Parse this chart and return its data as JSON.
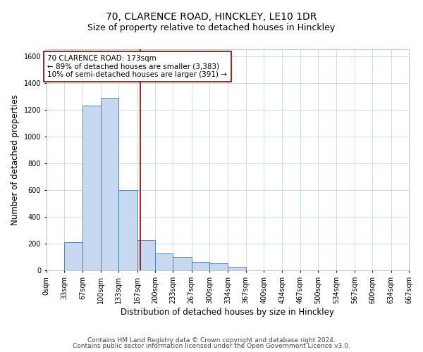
{
  "title_line1": "70, CLARENCE ROAD, HINCKLEY, LE10 1DR",
  "title_line2": "Size of property relative to detached houses in Hinckley",
  "xlabel": "Distribution of detached houses by size in Hinckley",
  "ylabel": "Number of detached properties",
  "footnote_line1": "Contains HM Land Registry data © Crown copyright and database right 2024.",
  "footnote_line2": "Contains public sector information licensed under the Open Government Licence v3.0.",
  "bin_edges": [
    0,
    33,
    67,
    100,
    133,
    167,
    200,
    233,
    267,
    300,
    334,
    367,
    400,
    434,
    467,
    500,
    534,
    567,
    600,
    634,
    667
  ],
  "bin_labels": [
    "0sqm",
    "33sqm",
    "67sqm",
    "100sqm",
    "133sqm",
    "167sqm",
    "200sqm",
    "233sqm",
    "267sqm",
    "300sqm",
    "334sqm",
    "367sqm",
    "400sqm",
    "434sqm",
    "467sqm",
    "500sqm",
    "534sqm",
    "567sqm",
    "600sqm",
    "634sqm",
    "667sqm"
  ],
  "bar_heights": [
    0,
    210,
    1230,
    1290,
    600,
    230,
    130,
    100,
    65,
    55,
    30,
    0,
    0,
    0,
    0,
    0,
    0,
    0,
    0,
    0
  ],
  "bar_color": "#c6d9f0",
  "bar_edge_color": "#4472c4",
  "property_size": 173,
  "vline_color": "#8B0000",
  "ylim": [
    0,
    1650
  ],
  "yticks": [
    0,
    200,
    400,
    600,
    800,
    1000,
    1200,
    1400,
    1600
  ],
  "annotation_text_line1": "70 CLARENCE ROAD: 173sqm",
  "annotation_text_line2": "← 89% of detached houses are smaller (3,383)",
  "annotation_text_line3": "10% of semi-detached houses are larger (391) →",
  "annotation_box_color": "#ffffff",
  "annotation_box_edge_color": "#8B0000",
  "bg_color": "#ffffff",
  "grid_color": "#c8d8e8",
  "title_fontsize": 10,
  "subtitle_fontsize": 9,
  "axis_label_fontsize": 8.5,
  "tick_fontsize": 7,
  "footnote_fontsize": 6.5,
  "annot_fontsize": 7.5
}
